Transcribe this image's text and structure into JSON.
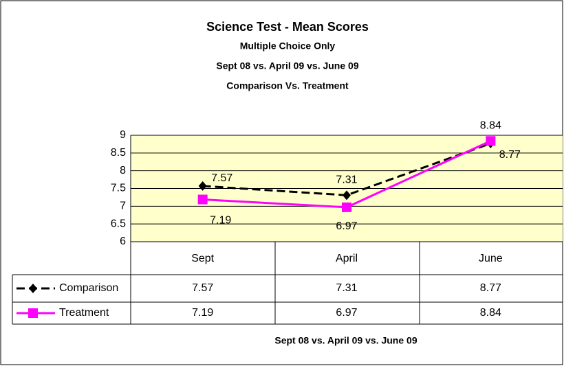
{
  "chart_data": {
    "type": "line",
    "title": "Science Test - Mean Scores",
    "subtitles": [
      "Multiple Choice Only",
      "Sept 08 vs. April 09 vs. June 09",
      "Comparison Vs. Treatment"
    ],
    "xlabel": "Sept 08 vs. April 09 vs. June 09",
    "categories": [
      "Sept",
      "April",
      "June"
    ],
    "series": [
      {
        "name": "Comparison",
        "color": "#000000",
        "values": [
          7.57,
          7.31,
          8.77
        ]
      },
      {
        "name": "Treatment",
        "color": "#ff00ff",
        "values": [
          7.19,
          6.97,
          8.84
        ]
      }
    ],
    "ylim": [
      6,
      9
    ],
    "yticks": [
      6,
      6.5,
      7,
      7.5,
      8,
      8.5,
      9
    ],
    "grid": true
  }
}
